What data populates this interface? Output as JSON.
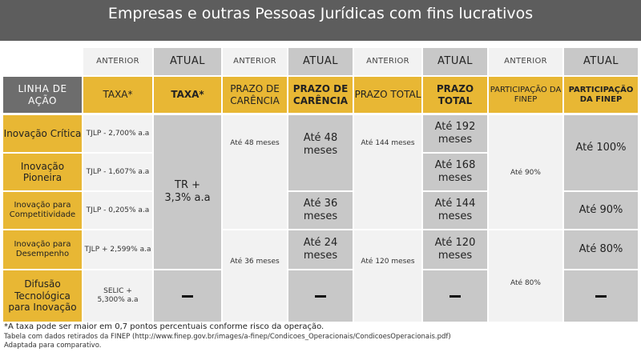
{
  "header": {
    "title": "Empresas e outras Pessoas Jurídicas com fins lucrativos"
  },
  "table": {
    "top_labels": {
      "anterior": "ANTERIOR",
      "atual": "ATUAL"
    },
    "columns": {
      "linha": "LINHA DE AÇÃO",
      "taxa_ant": "TAXA*",
      "taxa_at": "TAXA*",
      "carencia_ant": "PRAZO DE CARÊNCIA",
      "carencia_at": "PRAZO DE CARÊNCIA",
      "total_ant": "PRAZO TOTAL",
      "total_at": "PRAZO TOTAL",
      "part_ant": "PARTICIPAÇÃO DA FINEP",
      "part_at": "PARTICIPAÇÃO DA FINEP"
    },
    "rows": [
      {
        "linha": "Inovação Crítica",
        "taxa_ant": "TJLP - 2,700% a.a",
        "total_at": "Até 192 meses"
      },
      {
        "linha": "Inovação Pioneira",
        "taxa_ant": "TJLP - 1,607% a.a",
        "total_at": "Até 168 meses"
      },
      {
        "linha": "Inovação para Competitividade",
        "taxa_ant": "TJLP - 0,205% a.a",
        "total_at": "Até 144 meses"
      },
      {
        "linha": "Inovação para Desempenho",
        "taxa_ant": "TJLP + 2,599% a.a",
        "total_at": "Até 120 meses"
      },
      {
        "linha": "Difusão Tecnológica para Inovação",
        "taxa_ant": "SELIC + 5,300% a.a",
        "total_at": "—"
      }
    ],
    "merged": {
      "taxa_at": "TR + 3,3% a.a",
      "taxa_at_row5": "—",
      "carencia_ant_top": "Até 48 meses",
      "carencia_ant_bottom": "Até 36 meses",
      "carencia_at_12": "Até 48 meses",
      "carencia_at_3": "Até 36 meses",
      "carencia_at_4": "Até 24 meses",
      "carencia_at_5": "—",
      "total_ant_top": "Até 144 meses",
      "total_ant_bottom": "Até 120 meses",
      "part_ant_top": "Até 90%",
      "part_ant_bottom": "Até 80%",
      "part_at_12": "Até 100%",
      "part_at_3": "Até 90%",
      "part_at_4": "Até 80%",
      "part_at_5": "—"
    }
  },
  "footnotes": {
    "note": "*A taxa pode ser maior em 0,7 pontos percentuais conforme risco da operação.",
    "source": "Tabela com dados retirados da FINEP (http://www.finep.gov.br/images/a-finep/Condicoes_Operacionais/CondicoesOperacionais.pdf)",
    "adapted": "Adaptada para comparativo."
  },
  "colors": {
    "banner": "#5d5d5d",
    "gold": "#e8b734",
    "gray": "#c8c8c8",
    "light_gray": "#f2f2f2",
    "label_dark": "#6d6d6d"
  }
}
